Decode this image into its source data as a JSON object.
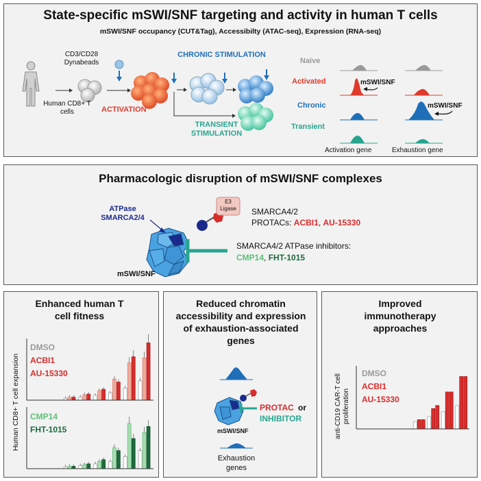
{
  "colors": {
    "red": "#e03a2b",
    "blue": "#1f6fb8",
    "teal": "#27a58f",
    "grey": "#9a9a9a",
    "darkgreen": "#1c6b3d",
    "lightgreen": "#5fbf7a",
    "navy": "#1a2a8c",
    "salmon": "#f0a898",
    "pink": "#e8b8b0"
  },
  "top": {
    "title": "State-specific mSWI/SNF targeting and activity in human T cells",
    "subtitle": "mSWI/SNF occupancy (CUT&Tag), Accessibilty (ATAC-seq), Expression (RNA-seq)",
    "beads": "CD3/CD28 Dynabeads",
    "source": "Human CD8+ T cells",
    "activation": "ACTIVATION",
    "chronic": "CHRONIC STIMULATION",
    "transient": "TRANSIENT STIMULATION",
    "states": [
      "Naive",
      "Activated",
      "Chronic",
      "Transient"
    ],
    "swisnf1": "mSWI/SNF",
    "swisnf2": "mSWI/SNF",
    "gene1": "Activation gene",
    "gene2": "Exhaustion gene"
  },
  "middle": {
    "title": "Pharmacologic disruption of mSWI/SNF complexes",
    "atpase": "ATPase SMARCA2/4",
    "e3": "E3 Ligase",
    "protac_line1": "SMARCA4/2",
    "protac_line2": "PROTACs:",
    "protac1": "ACBI1",
    "comma1": ",",
    "protac2": "AU-15330",
    "inhib_line": "SMARCA4/2 ATPase inhibitors:",
    "inhib1": "CMP14",
    "comma2": ",",
    "inhib2": "FHT-1015",
    "complex": "mSWI/SNF"
  },
  "left": {
    "title": "Enhanced human T cell fitness",
    "ylabel": "Human CD8+ T cell expansion",
    "legend_top": [
      "DMSO",
      "ACBI1",
      "AU-15330"
    ],
    "legend_bottom": [
      "CMP14",
      "FHT-1015"
    ]
  },
  "center": {
    "title": "Reduced chromatin accessibility and expression of exhaustion-associated genes",
    "protac": "PROTAC",
    "or": "or",
    "inhibitor": "INHIBITOR",
    "complex": "mSWI/SNF",
    "genes": "Exhaustion genes"
  },
  "right": {
    "title": "Improved immunotherapy approaches",
    "ylabel": "anti-CD19 CAR-T cell proliferation",
    "legend": [
      "DMSO",
      "ACBI1",
      "AU-15330"
    ]
  },
  "chart_data": [
    {
      "type": "bar",
      "series": [
        {
          "name": "DMSO",
          "values": [
            0.03,
            0.05,
            0.08,
            0.12,
            0.2,
            0.32
          ]
        },
        {
          "name": "ACBI1",
          "values": [
            0.05,
            0.09,
            0.16,
            0.35,
            0.62,
            0.7
          ]
        },
        {
          "name": "AU-15330",
          "values": [
            0.05,
            0.1,
            0.18,
            0.3,
            0.72,
            0.95
          ]
        }
      ]
    },
    {
      "type": "bar",
      "series": [
        {
          "name": "DMSO",
          "values": [
            0.03,
            0.05,
            0.08,
            0.12,
            0.2,
            0.3
          ]
        },
        {
          "name": "CMP14",
          "values": [
            0.04,
            0.07,
            0.12,
            0.35,
            0.75,
            0.6
          ]
        },
        {
          "name": "FHT-1015",
          "values": [
            0.04,
            0.08,
            0.15,
            0.3,
            0.5,
            0.7
          ]
        }
      ]
    },
    {
      "type": "bar",
      "series": [
        {
          "name": "DMSO",
          "values": [
            0.12,
            0.2,
            0.28,
            0.38
          ]
        },
        {
          "name": "ACBI1",
          "values": [
            0.15,
            0.33,
            0.6,
            0.85
          ]
        },
        {
          "name": "AU-15330",
          "values": [
            0.15,
            0.38,
            0.6,
            0.85
          ]
        }
      ]
    }
  ]
}
